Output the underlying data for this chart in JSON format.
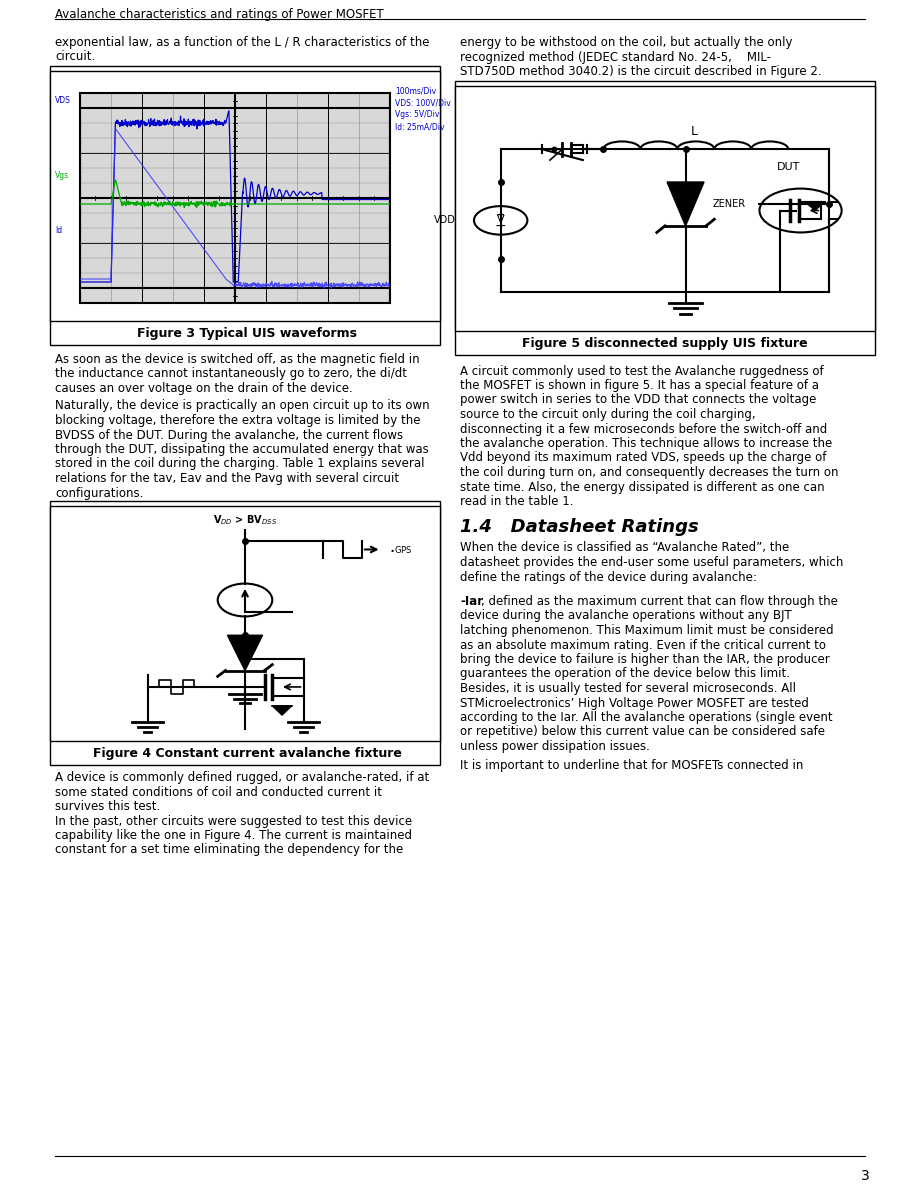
{
  "header_text": "Avalanche characteristics and ratings of Power MOSFET",
  "page_number": "3",
  "fig3_caption": "Figure 3 Typical UIS waveforms",
  "fig4_caption": "Figure 4 Constant current avalanche fixture",
  "fig5_caption": "Figure 5 disconnected supply UIS fixture",
  "col1_top_lines": [
    "exponential law, as a function of the L / R characteristics of the",
    "circuit."
  ],
  "col2_top_lines": [
    "energy to be withstood on the coil, but actually the only",
    "recognized method (JEDEC standard No. 24-5,    MIL-",
    "STD750D method 3040.2) is the circuit described in Figure 2."
  ],
  "col1_para1_lines": [
    "As soon as the device is switched off, as the magnetic field in",
    "the inductance cannot instantaneously go to zero, the di/dt",
    "causes an over voltage on the drain of the device."
  ],
  "col1_para2_lines": [
    "Naturally, the device is practically an open circuit up to its own",
    "blocking voltage, therefore the extra voltage is limited by the",
    "BVDSS of the DUT. During the avalanche, the current flows",
    "through the DUT, dissipating the accumulated energy that was",
    "stored in the coil during the charging. Table 1 explains several",
    "relations for the tav, Eav and the Pavg with several circuit",
    "configurations."
  ],
  "col1_para3_lines": [
    "A device is commonly defined rugged, or avalanche-rated, if at",
    "some stated conditions of coil and conducted current it",
    "survives this test.",
    "In the past, other circuits were suggested to test this device",
    "capability like the one in Figure 4. The current is maintained",
    "constant for a set time eliminating the dependency for the"
  ],
  "col2_body_lines": [
    "A circuit commonly used to test the Avalanche ruggedness of",
    "the MOSFET is shown in figure 5. It has a special feature of a",
    "power switch in series to the VDD that connects the voltage",
    "source to the circuit only during the coil charging,",
    "disconnecting it a few microseconds before the switch-off and",
    "the avalanche operation. This technique allows to increase the",
    "Vdd beyond its maximum rated VDS, speeds up the charge of",
    "the coil during turn on, and consequently decreases the turn on",
    "state time. Also, the energy dissipated is different as one can",
    "read in the table 1."
  ],
  "col2_heading": "1.4   Datasheet Ratings",
  "col2_after_heading": [
    "When the device is classified as “Avalanche Rated”, the",
    "datasheet provides the end-user some useful parameters, which",
    "define the ratings of the device during avalanche:"
  ],
  "col2_iar_bold": "-Iar",
  "col2_iar_rest": ", defined as the maximum current that can flow through the",
  "col2_iar_lines": [
    "device during the avalanche operations without any BJT",
    "latching phenomenon. This Maximum limit must be considered",
    "as an absolute maximum rating. Even if the critical current to",
    "bring the device to failure is higher than the IAR, the producer",
    "guarantees the operation of the device below this limit.",
    "Besides, it is usually tested for several microseconds. All",
    "STMicroelectronics’ High Voltage Power MOSFET are tested",
    "according to the Iar. All the avalanche operations (single event",
    "or repetitive) below this current value can be considered safe",
    "unless power dissipation issues."
  ],
  "col2_last_line": "It is important to underline that for MOSFETs connected in",
  "bg": "#ffffff",
  "osc_legend": [
    "100ms/Div",
    "VDS: 100V/Div",
    "Vgs: 5V/Div",
    "Id: 25mA/Div"
  ]
}
